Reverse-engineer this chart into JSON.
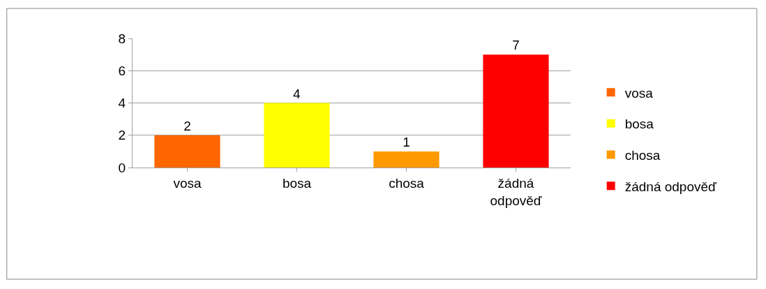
{
  "chart_data": {
    "type": "bar",
    "categories": [
      "vosa",
      "bosa",
      "chosa",
      "žádná odpověď"
    ],
    "series": [
      {
        "name": "vosa",
        "color": "#ff6600",
        "values": [
          2,
          null,
          null,
          null
        ]
      },
      {
        "name": "bosa",
        "color": "#ffff00",
        "values": [
          null,
          4,
          null,
          null
        ]
      },
      {
        "name": "chosa",
        "color": "#ff9900",
        "values": [
          null,
          null,
          1,
          null
        ]
      },
      {
        "name": "žádná odpověď",
        "color": "#ff0000",
        "values": [
          null,
          null,
          null,
          7
        ]
      }
    ],
    "ylim": [
      0,
      8
    ],
    "yticks": [
      0,
      2,
      4,
      6,
      8
    ],
    "grid": "y",
    "legend": "right",
    "data_labels": true
  }
}
